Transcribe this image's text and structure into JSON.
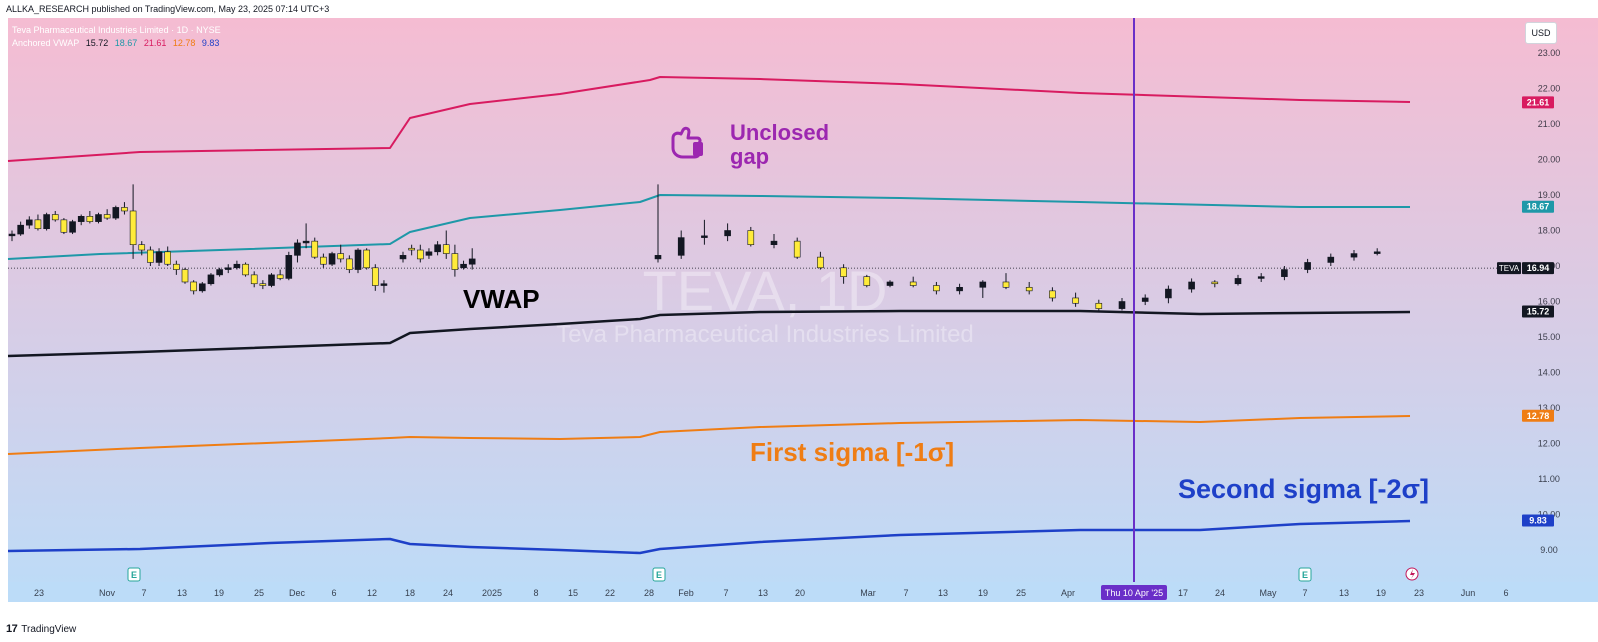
{
  "header": {
    "publish_line": "ALLKA_RESEARCH published on TradingView.com, May 23, 2025 07:14 UTC+3"
  },
  "footer": {
    "brand": "TradingView",
    "logo_mark": "17"
  },
  "legend": {
    "symbol_line": "Teva Pharmaceutical Industries Limited · 1D · NYSE",
    "indicator_name": "Anchored VWAP",
    "values": [
      {
        "text": "15.72",
        "color": "#131722"
      },
      {
        "text": "18.67",
        "color": "#1e98a8"
      },
      {
        "text": "21.61",
        "color": "#d81b60"
      },
      {
        "text": "12.78",
        "color": "#ef7d14"
      },
      {
        "text": "9.83",
        "color": "#1e40c8"
      }
    ]
  },
  "currency_button": "USD",
  "watermark": {
    "ticker": "TEVA, 1D",
    "company": "Teva Pharmaceutical Industries Limited"
  },
  "annotations": {
    "unclosed_gap": [
      "Unclosed",
      "gap"
    ],
    "vwap": "VWAP",
    "first_sigma": "First sigma [-1σ]",
    "second_sigma": "Second sigma [-2σ]"
  },
  "colors": {
    "bg_top": "#f5bcd2",
    "bg_bottom": "#bcdcf8",
    "upper2": "#d81b60",
    "upper1": "#1e98a8",
    "vwap": "#131722",
    "lower1": "#ef7d14",
    "lower2": "#1e40c8",
    "vline": "#6a2fc8",
    "candle_up": "#131722",
    "candle_down": "#ffeb3b",
    "unclosed_gap": "#9c27b0",
    "first_sigma": "#ef7d14",
    "second_sigma": "#1e40c8"
  },
  "chart_data": {
    "type": "candlestick",
    "symbol": "TEVA",
    "ylim": [
      8.4,
      23.6
    ],
    "y_ticks": [
      "9.00",
      "10.00",
      "11.00",
      "12.00",
      "13.00",
      "14.00",
      "15.00",
      "16.00",
      "17.00",
      "18.00",
      "19.00",
      "20.00",
      "21.00",
      "22.00",
      "23.00"
    ],
    "x_ticks": [
      "23",
      "Nov",
      "7",
      "13",
      "19",
      "25",
      "Dec",
      "6",
      "12",
      "18",
      "24",
      "2025",
      "8",
      "15",
      "22",
      "28",
      "Feb",
      "7",
      "13",
      "20",
      "Mar",
      "7",
      "13",
      "19",
      "25",
      "Apr",
      "Thu 10 Apr '25",
      "17",
      "24",
      "May",
      "7",
      "13",
      "19",
      "23",
      "Jun",
      "6"
    ],
    "crosshair_date": "Thu 10 Apr '25",
    "last_price": 16.94,
    "price_labels": [
      {
        "text": "21.61",
        "value": 21.61,
        "color": "#d81b60"
      },
      {
        "text": "18.67",
        "value": 18.67,
        "color": "#1e98a8"
      },
      {
        "text": "16.94",
        "value": 16.94,
        "color": "#131722",
        "tag": "TEVA"
      },
      {
        "text": "15.72",
        "value": 15.72,
        "color": "#131722"
      },
      {
        "text": "12.78",
        "value": 12.78,
        "color": "#ef7d14"
      },
      {
        "text": "9.83",
        "value": 9.83,
        "color": "#1e40c8"
      }
    ],
    "earnings_markers": [
      "E",
      "E",
      "E"
    ],
    "candles": [
      [
        17.85,
        18.0,
        17.7,
        17.9
      ],
      [
        17.9,
        18.25,
        17.85,
        18.15
      ],
      [
        18.15,
        18.4,
        18.05,
        18.3
      ],
      [
        18.3,
        18.45,
        18.0,
        18.05
      ],
      [
        18.05,
        18.5,
        18.0,
        18.45
      ],
      [
        18.45,
        18.55,
        18.25,
        18.3
      ],
      [
        18.3,
        18.35,
        17.9,
        17.95
      ],
      [
        17.95,
        18.3,
        17.9,
        18.25
      ],
      [
        18.25,
        18.45,
        18.15,
        18.4
      ],
      [
        18.4,
        18.55,
        18.2,
        18.25
      ],
      [
        18.25,
        18.5,
        18.2,
        18.45
      ],
      [
        18.45,
        18.6,
        18.3,
        18.35
      ],
      [
        18.35,
        18.7,
        18.3,
        18.65
      ],
      [
        18.65,
        18.8,
        18.45,
        18.55
      ],
      [
        18.55,
        19.3,
        17.2,
        17.6
      ],
      [
        17.6,
        17.7,
        17.3,
        17.45
      ],
      [
        17.45,
        17.55,
        17.0,
        17.1
      ],
      [
        17.1,
        17.5,
        17.0,
        17.4
      ],
      [
        17.4,
        17.55,
        17.0,
        17.05
      ],
      [
        17.05,
        17.15,
        16.75,
        16.9
      ],
      [
        16.9,
        16.95,
        16.5,
        16.55
      ],
      [
        16.55,
        16.6,
        16.2,
        16.3
      ],
      [
        16.3,
        16.55,
        16.25,
        16.5
      ],
      [
        16.5,
        16.8,
        16.45,
        16.75
      ],
      [
        16.75,
        16.95,
        16.7,
        16.9
      ],
      [
        16.9,
        17.05,
        16.8,
        16.95
      ],
      [
        16.95,
        17.15,
        16.9,
        17.05
      ],
      [
        17.05,
        17.1,
        16.7,
        16.75
      ],
      [
        16.75,
        16.85,
        16.4,
        16.5
      ],
      [
        16.5,
        16.6,
        16.35,
        16.45
      ],
      [
        16.45,
        16.8,
        16.4,
        16.75
      ],
      [
        16.75,
        16.9,
        16.6,
        16.65
      ],
      [
        16.65,
        17.4,
        16.6,
        17.3
      ],
      [
        17.3,
        17.75,
        17.1,
        17.65
      ],
      [
        17.65,
        18.2,
        17.5,
        17.7
      ],
      [
        17.7,
        17.8,
        17.2,
        17.25
      ],
      [
        17.25,
        17.35,
        16.95,
        17.05
      ],
      [
        17.05,
        17.4,
        17.0,
        17.35
      ],
      [
        17.35,
        17.6,
        17.1,
        17.2
      ],
      [
        17.2,
        17.3,
        16.8,
        16.9
      ],
      [
        16.9,
        17.5,
        16.8,
        17.45
      ],
      [
        17.45,
        17.5,
        16.9,
        16.95
      ],
      [
        16.95,
        17.05,
        16.3,
        16.45
      ],
      [
        16.45,
        16.6,
        16.25,
        16.5
      ],
      [
        17.2,
        17.4,
        17.1,
        17.3
      ],
      [
        17.5,
        17.6,
        17.3,
        17.45
      ],
      [
        17.45,
        17.6,
        17.1,
        17.2
      ],
      [
        17.3,
        17.5,
        17.2,
        17.4
      ],
      [
        17.4,
        17.7,
        17.3,
        17.6
      ],
      [
        17.6,
        18.0,
        17.2,
        17.35
      ],
      [
        17.35,
        17.6,
        16.7,
        16.9
      ],
      [
        16.95,
        17.15,
        16.9,
        17.05
      ],
      [
        17.05,
        17.5,
        16.9,
        17.2
      ],
      [
        17.2,
        19.3,
        17.1,
        17.3
      ],
      [
        17.3,
        18.0,
        17.2,
        17.8
      ],
      [
        17.8,
        18.3,
        17.6,
        17.85
      ],
      [
        17.85,
        18.2,
        17.7,
        18.0
      ],
      [
        18.0,
        18.1,
        17.55,
        17.6
      ],
      [
        17.6,
        17.9,
        17.5,
        17.7
      ],
      [
        17.7,
        17.8,
        17.2,
        17.25
      ],
      [
        17.25,
        17.4,
        16.9,
        16.95
      ],
      [
        16.95,
        17.05,
        16.5,
        16.7
      ],
      [
        16.7,
        16.75,
        16.4,
        16.45
      ],
      [
        16.45,
        16.6,
        16.4,
        16.55
      ],
      [
        16.55,
        16.7,
        16.4,
        16.45
      ],
      [
        16.45,
        16.55,
        16.2,
        16.3
      ],
      [
        16.3,
        16.5,
        16.2,
        16.4
      ],
      [
        16.4,
        16.6,
        16.1,
        16.55
      ],
      [
        16.55,
        16.8,
        16.35,
        16.4
      ],
      [
        16.4,
        16.55,
        16.2,
        16.3
      ],
      [
        16.3,
        16.4,
        16.0,
        16.1
      ],
      [
        16.1,
        16.25,
        15.85,
        15.95
      ],
      [
        15.95,
        16.05,
        15.7,
        15.8
      ],
      [
        15.8,
        16.1,
        15.75,
        16.0
      ],
      [
        16.0,
        16.2,
        15.9,
        16.1
      ],
      [
        16.1,
        16.45,
        15.95,
        16.35
      ],
      [
        16.35,
        16.65,
        16.25,
        16.55
      ],
      [
        16.55,
        16.6,
        16.4,
        16.5
      ],
      [
        16.5,
        16.75,
        16.45,
        16.65
      ],
      [
        16.65,
        16.8,
        16.55,
        16.7
      ],
      [
        16.7,
        17.0,
        16.6,
        16.9
      ],
      [
        16.9,
        17.2,
        16.8,
        17.1
      ],
      [
        17.1,
        17.35,
        17.0,
        17.25
      ],
      [
        17.25,
        17.45,
        17.15,
        17.35
      ],
      [
        17.35,
        17.5,
        17.3,
        17.4
      ]
    ]
  }
}
